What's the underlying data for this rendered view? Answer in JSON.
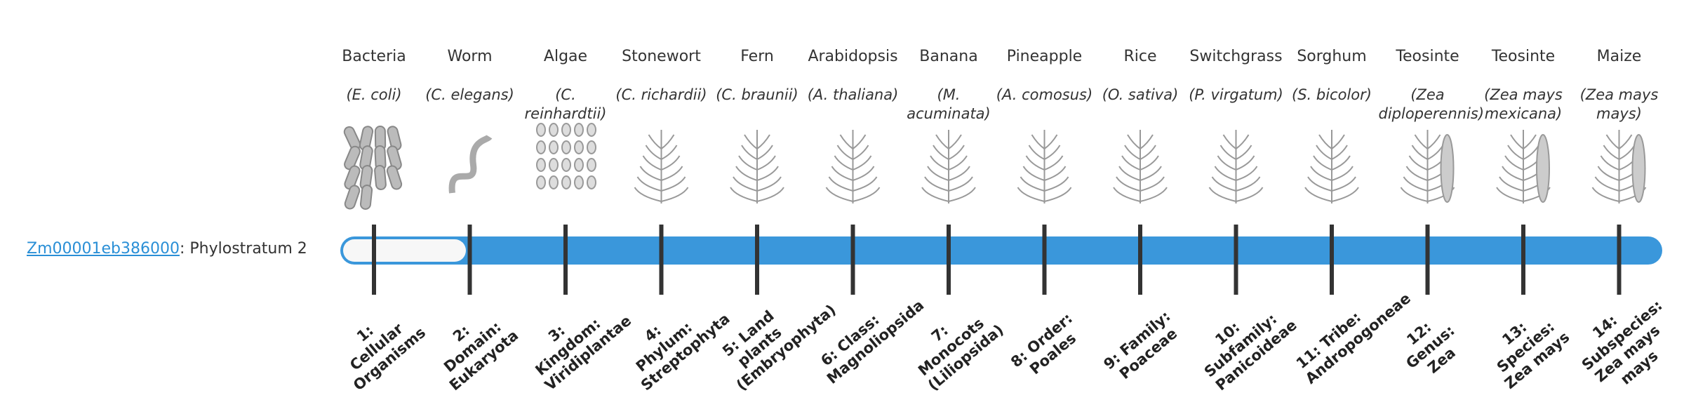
{
  "gene": {
    "id": "Zm00001eb386000",
    "suffix": ": Phylostratum 2"
  },
  "columns": [
    {
      "name": "Bacteria",
      "species": "(E. coli)",
      "stratum": "1: Cellular Organisms"
    },
    {
      "name": "Worm",
      "species": "(C. elegans)",
      "stratum": "2: Domain: Eukaryota"
    },
    {
      "name": "Algae",
      "species": "(C. reinhardtii)",
      "stratum": "3: Kingdom: Viridiplantae"
    },
    {
      "name": "Stonewort",
      "species": "(C. richardii)",
      "stratum": "4: Phylum: Streptophyta"
    },
    {
      "name": "Fern",
      "species": "(C. braunii)",
      "stratum": "5: Land plants (Embryophyta)"
    },
    {
      "name": "Arabidopsis",
      "species": "(A. thaliana)",
      "stratum": "6: Class: Magnoliopsida"
    },
    {
      "name": "Banana",
      "species": "(M. acuminata)",
      "stratum": "7: Monocots (Liliopsida)"
    },
    {
      "name": "Pineapple",
      "species": "(A. comosus)",
      "stratum": "8: Order: Poales"
    },
    {
      "name": "Rice",
      "species": "(O. sativa)",
      "stratum": "9: Family: Poaceae"
    },
    {
      "name": "Switchgrass",
      "species": "(P. virgatum)",
      "stratum": "10: Subfamily: Panicoideae"
    },
    {
      "name": "Sorghum",
      "species": "(S. bicolor)",
      "stratum": "11: Tribe: Andropogoneae"
    },
    {
      "name": "Teosinte",
      "species": "(Zea diploperennis)",
      "stratum": "12: Genus: Zea"
    },
    {
      "name": "Teosinte",
      "species": "(Zea mays mexicana)",
      "stratum": "13: Species: Zea mays"
    },
    {
      "name": "Maize",
      "species": "(Zea mays mays)",
      "stratum": "14: Subspecies: Zea mays mays"
    }
  ]
}
